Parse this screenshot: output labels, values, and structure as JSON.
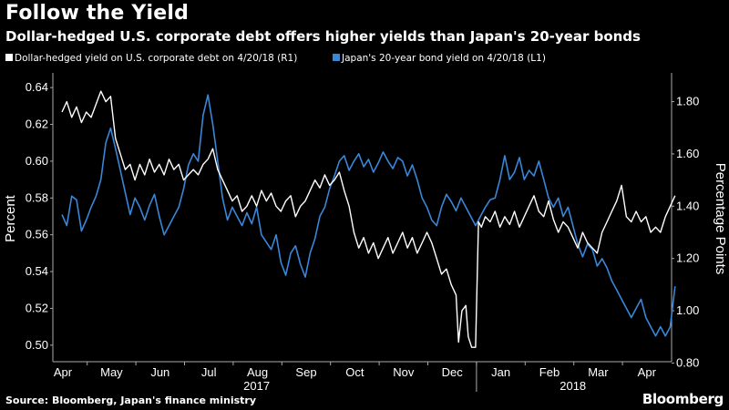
{
  "header": {
    "title": "Follow the Yield",
    "subtitle": "Dollar-hedged U.S. corporate debt offers higher yields than Japan's 20-year bonds"
  },
  "footer": {
    "source": "Source: Bloomberg, Japan's finance ministry",
    "brand": "Bloomberg"
  },
  "colors": {
    "background": "#000000",
    "usd_series": "#ffffff",
    "jpy_series": "#3a86d8",
    "text": "#ffffff",
    "grid": "#666666"
  },
  "chart_data": {
    "type": "line",
    "title": "Follow the Yield",
    "subtitle": "Dollar-hedged U.S. corporate debt offers higher yields than Japan's 20-year bonds",
    "x_tick_labels": [
      "Apr",
      "May",
      "Jun",
      "Jul",
      "Aug",
      "Sep",
      "Oct",
      "Nov",
      "Dec",
      "Jan",
      "Feb",
      "Mar",
      "Apr"
    ],
    "year_labels": [
      "2017",
      "2018"
    ],
    "y_left": {
      "label": "Percent",
      "ticks": [
        "0.64",
        "0.62",
        "0.60",
        "0.58",
        "0.56",
        "0.54",
        "0.52",
        "0.50"
      ],
      "range": [
        0.491,
        0.648
      ]
    },
    "y_right": {
      "label": "Percentage Points",
      "ticks": [
        "1.80",
        "1.60",
        "1.40",
        "1.20",
        "1.00",
        "0.80"
      ],
      "range": [
        0.805,
        1.91
      ]
    },
    "x_range": [
      0,
      12.7
    ],
    "series": [
      {
        "name": "Dollar-hedged yield on U.S. corporate debt on 4/20/18 (R1)",
        "axis": "right",
        "color": "#ffffff",
        "points": [
          [
            0.0,
            1.76
          ],
          [
            0.1,
            1.8
          ],
          [
            0.2,
            1.74
          ],
          [
            0.3,
            1.78
          ],
          [
            0.4,
            1.72
          ],
          [
            0.5,
            1.76
          ],
          [
            0.6,
            1.74
          ],
          [
            0.7,
            1.79
          ],
          [
            0.8,
            1.84
          ],
          [
            0.9,
            1.8
          ],
          [
            1.0,
            1.82
          ],
          [
            1.1,
            1.66
          ],
          [
            1.2,
            1.6
          ],
          [
            1.3,
            1.54
          ],
          [
            1.4,
            1.56
          ],
          [
            1.5,
            1.5
          ],
          [
            1.6,
            1.56
          ],
          [
            1.7,
            1.52
          ],
          [
            1.8,
            1.58
          ],
          [
            1.9,
            1.53
          ],
          [
            2.0,
            1.56
          ],
          [
            2.1,
            1.52
          ],
          [
            2.2,
            1.58
          ],
          [
            2.3,
            1.54
          ],
          [
            2.4,
            1.56
          ],
          [
            2.5,
            1.5
          ],
          [
            2.6,
            1.52
          ],
          [
            2.7,
            1.54
          ],
          [
            2.8,
            1.52
          ],
          [
            2.9,
            1.56
          ],
          [
            3.0,
            1.58
          ],
          [
            3.1,
            1.62
          ],
          [
            3.2,
            1.54
          ],
          [
            3.3,
            1.5
          ],
          [
            3.4,
            1.46
          ],
          [
            3.5,
            1.42
          ],
          [
            3.6,
            1.44
          ],
          [
            3.7,
            1.38
          ],
          [
            3.8,
            1.4
          ],
          [
            3.9,
            1.44
          ],
          [
            4.0,
            1.4
          ],
          [
            4.1,
            1.46
          ],
          [
            4.2,
            1.42
          ],
          [
            4.3,
            1.45
          ],
          [
            4.4,
            1.4
          ],
          [
            4.5,
            1.38
          ],
          [
            4.6,
            1.42
          ],
          [
            4.7,
            1.44
          ],
          [
            4.8,
            1.36
          ],
          [
            4.9,
            1.4
          ],
          [
            5.0,
            1.42
          ],
          [
            5.1,
            1.46
          ],
          [
            5.2,
            1.5
          ],
          [
            5.3,
            1.47
          ],
          [
            5.4,
            1.52
          ],
          [
            5.5,
            1.48
          ],
          [
            5.6,
            1.5
          ],
          [
            5.7,
            1.53
          ],
          [
            5.8,
            1.46
          ],
          [
            5.9,
            1.4
          ],
          [
            6.0,
            1.3
          ],
          [
            6.1,
            1.24
          ],
          [
            6.2,
            1.28
          ],
          [
            6.3,
            1.22
          ],
          [
            6.4,
            1.26
          ],
          [
            6.5,
            1.2
          ],
          [
            6.6,
            1.24
          ],
          [
            6.7,
            1.28
          ],
          [
            6.8,
            1.22
          ],
          [
            6.9,
            1.26
          ],
          [
            7.0,
            1.3
          ],
          [
            7.1,
            1.24
          ],
          [
            7.2,
            1.28
          ],
          [
            7.3,
            1.22
          ],
          [
            7.4,
            1.26
          ],
          [
            7.5,
            1.3
          ],
          [
            7.6,
            1.26
          ],
          [
            7.7,
            1.2
          ],
          [
            7.8,
            1.14
          ],
          [
            7.9,
            1.16
          ],
          [
            8.0,
            1.1
          ],
          [
            8.1,
            1.06
          ],
          [
            8.15,
            0.88
          ],
          [
            8.22,
            1.0
          ],
          [
            8.3,
            1.02
          ],
          [
            8.35,
            0.9
          ],
          [
            8.42,
            0.86
          ],
          [
            8.5,
            0.86
          ],
          [
            8.56,
            1.34
          ],
          [
            8.62,
            1.32
          ],
          [
            8.7,
            1.36
          ],
          [
            8.8,
            1.34
          ],
          [
            8.9,
            1.38
          ],
          [
            9.0,
            1.32
          ],
          [
            9.1,
            1.36
          ],
          [
            9.2,
            1.33
          ],
          [
            9.3,
            1.38
          ],
          [
            9.4,
            1.32
          ],
          [
            9.5,
            1.36
          ],
          [
            9.6,
            1.4
          ],
          [
            9.7,
            1.44
          ],
          [
            9.8,
            1.38
          ],
          [
            9.9,
            1.36
          ],
          [
            10.0,
            1.42
          ],
          [
            10.1,
            1.35
          ],
          [
            10.2,
            1.3
          ],
          [
            10.3,
            1.34
          ],
          [
            10.4,
            1.32
          ],
          [
            10.5,
            1.28
          ],
          [
            10.6,
            1.24
          ],
          [
            10.7,
            1.3
          ],
          [
            10.8,
            1.26
          ],
          [
            10.9,
            1.24
          ],
          [
            11.0,
            1.22
          ],
          [
            11.1,
            1.3
          ],
          [
            11.2,
            1.34
          ],
          [
            11.3,
            1.38
          ],
          [
            11.4,
            1.42
          ],
          [
            11.5,
            1.48
          ],
          [
            11.6,
            1.36
          ],
          [
            11.7,
            1.34
          ],
          [
            11.8,
            1.38
          ],
          [
            11.9,
            1.34
          ],
          [
            12.0,
            1.36
          ],
          [
            12.1,
            1.3
          ],
          [
            12.2,
            1.32
          ],
          [
            12.3,
            1.3
          ],
          [
            12.4,
            1.36
          ],
          [
            12.5,
            1.4
          ],
          [
            12.6,
            1.44
          ]
        ]
      },
      {
        "name": "Japan's 20-year bond yield on 4/20/18 (L1)",
        "axis": "left",
        "color": "#3a86d8",
        "points": [
          [
            0.0,
            0.571
          ],
          [
            0.1,
            0.565
          ],
          [
            0.2,
            0.581
          ],
          [
            0.3,
            0.579
          ],
          [
            0.4,
            0.562
          ],
          [
            0.5,
            0.568
          ],
          [
            0.6,
            0.575
          ],
          [
            0.7,
            0.581
          ],
          [
            0.8,
            0.59
          ],
          [
            0.9,
            0.61
          ],
          [
            1.0,
            0.618
          ],
          [
            1.1,
            0.607
          ],
          [
            1.2,
            0.595
          ],
          [
            1.3,
            0.583
          ],
          [
            1.4,
            0.571
          ],
          [
            1.5,
            0.58
          ],
          [
            1.6,
            0.575
          ],
          [
            1.7,
            0.568
          ],
          [
            1.8,
            0.576
          ],
          [
            1.9,
            0.582
          ],
          [
            2.0,
            0.57
          ],
          [
            2.1,
            0.56
          ],
          [
            2.2,
            0.565
          ],
          [
            2.3,
            0.57
          ],
          [
            2.4,
            0.575
          ],
          [
            2.5,
            0.585
          ],
          [
            2.6,
            0.598
          ],
          [
            2.7,
            0.604
          ],
          [
            2.8,
            0.6
          ],
          [
            2.9,
            0.625
          ],
          [
            3.0,
            0.636
          ],
          [
            3.1,
            0.62
          ],
          [
            3.2,
            0.6
          ],
          [
            3.3,
            0.58
          ],
          [
            3.4,
            0.568
          ],
          [
            3.5,
            0.575
          ],
          [
            3.6,
            0.57
          ],
          [
            3.7,
            0.565
          ],
          [
            3.8,
            0.572
          ],
          [
            3.9,
            0.566
          ],
          [
            4.0,
            0.575
          ],
          [
            4.1,
            0.56
          ],
          [
            4.2,
            0.556
          ],
          [
            4.3,
            0.552
          ],
          [
            4.4,
            0.56
          ],
          [
            4.5,
            0.545
          ],
          [
            4.6,
            0.538
          ],
          [
            4.7,
            0.55
          ],
          [
            4.8,
            0.554
          ],
          [
            4.9,
            0.544
          ],
          [
            5.0,
            0.537
          ],
          [
            5.1,
            0.55
          ],
          [
            5.2,
            0.558
          ],
          [
            5.3,
            0.57
          ],
          [
            5.4,
            0.575
          ],
          [
            5.5,
            0.585
          ],
          [
            5.6,
            0.592
          ],
          [
            5.7,
            0.6
          ],
          [
            5.8,
            0.603
          ],
          [
            5.9,
            0.595
          ],
          [
            6.0,
            0.6
          ],
          [
            6.1,
            0.604
          ],
          [
            6.2,
            0.597
          ],
          [
            6.3,
            0.601
          ],
          [
            6.4,
            0.594
          ],
          [
            6.5,
            0.599
          ],
          [
            6.6,
            0.605
          ],
          [
            6.7,
            0.6
          ],
          [
            6.8,
            0.596
          ],
          [
            6.9,
            0.602
          ],
          [
            7.0,
            0.6
          ],
          [
            7.1,
            0.592
          ],
          [
            7.2,
            0.598
          ],
          [
            7.3,
            0.59
          ],
          [
            7.4,
            0.58
          ],
          [
            7.5,
            0.575
          ],
          [
            7.6,
            0.568
          ],
          [
            7.7,
            0.565
          ],
          [
            7.8,
            0.575
          ],
          [
            7.9,
            0.582
          ],
          [
            8.0,
            0.578
          ],
          [
            8.1,
            0.573
          ],
          [
            8.2,
            0.58
          ],
          [
            8.3,
            0.575
          ],
          [
            8.4,
            0.57
          ],
          [
            8.5,
            0.565
          ],
          [
            8.6,
            0.57
          ],
          [
            8.7,
            0.575
          ],
          [
            8.8,
            0.579
          ],
          [
            8.9,
            0.58
          ],
          [
            9.0,
            0.59
          ],
          [
            9.1,
            0.603
          ],
          [
            9.2,
            0.59
          ],
          [
            9.3,
            0.594
          ],
          [
            9.4,
            0.602
          ],
          [
            9.5,
            0.59
          ],
          [
            9.6,
            0.595
          ],
          [
            9.7,
            0.592
          ],
          [
            9.8,
            0.6
          ],
          [
            9.9,
            0.59
          ],
          [
            10.0,
            0.58
          ],
          [
            10.1,
            0.575
          ],
          [
            10.2,
            0.58
          ],
          [
            10.3,
            0.57
          ],
          [
            10.4,
            0.575
          ],
          [
            10.5,
            0.565
          ],
          [
            10.6,
            0.555
          ],
          [
            10.7,
            0.548
          ],
          [
            10.8,
            0.555
          ],
          [
            10.9,
            0.552
          ],
          [
            11.0,
            0.543
          ],
          [
            11.1,
            0.547
          ],
          [
            11.2,
            0.542
          ],
          [
            11.3,
            0.535
          ],
          [
            11.4,
            0.53
          ],
          [
            11.5,
            0.525
          ],
          [
            11.6,
            0.52
          ],
          [
            11.7,
            0.515
          ],
          [
            11.8,
            0.52
          ],
          [
            11.9,
            0.525
          ],
          [
            12.0,
            0.515
          ],
          [
            12.1,
            0.51
          ],
          [
            12.2,
            0.505
          ],
          [
            12.3,
            0.51
          ],
          [
            12.4,
            0.505
          ],
          [
            12.5,
            0.51
          ],
          [
            12.6,
            0.532
          ]
        ]
      }
    ]
  }
}
